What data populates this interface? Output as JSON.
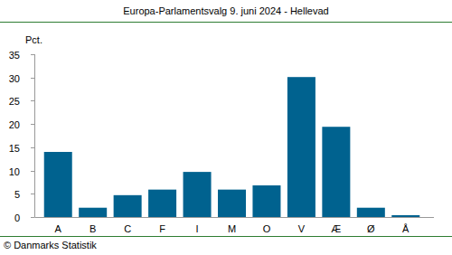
{
  "chart_data": {
    "type": "bar",
    "title": "Europa-Parlamentsvalg 9. juni 2024 - Hellevad",
    "y_label": "Pct.",
    "annotations": [
      "© Danmarks Statistik"
    ],
    "categories": [
      "A",
      "B",
      "C",
      "F",
      "I",
      "M",
      "O",
      "V",
      "Æ",
      "Ø",
      "Å"
    ],
    "values": [
      14.0,
      2.0,
      4.7,
      5.9,
      9.7,
      5.9,
      6.8,
      30.1,
      19.4,
      2.0,
      0.4
    ],
    "color": "#00628f",
    "ylim": [
      0,
      35
    ],
    "yticks": [
      0,
      5,
      10,
      15,
      20,
      25,
      30,
      35
    ],
    "grid": false
  }
}
